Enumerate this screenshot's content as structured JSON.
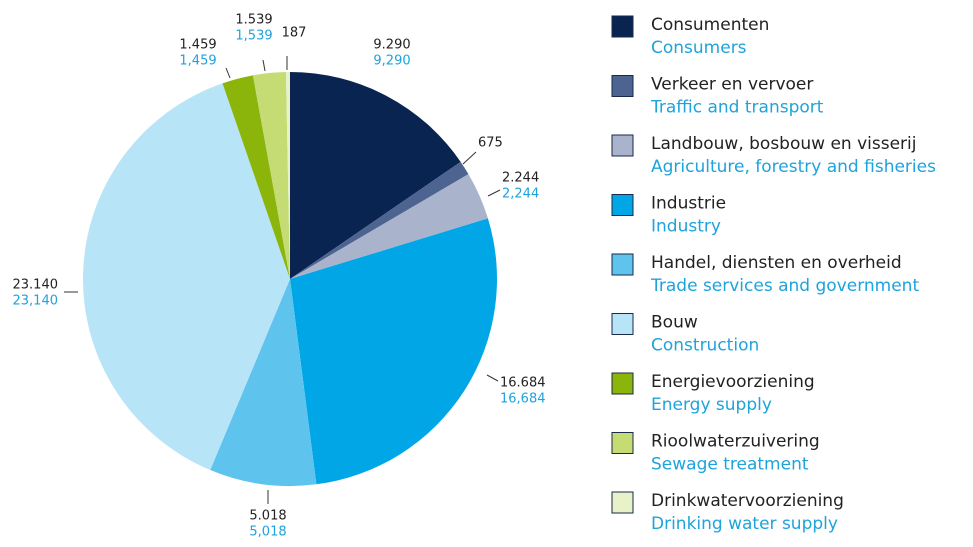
{
  "chart_data": {
    "type": "pie",
    "categories": [
      "Consumenten",
      "Verkeer en vervoer",
      "Landbouw, bosbouw en visserij",
      "Industrie",
      "Handel, diensten en overheid",
      "Bouw",
      "Energievoorziening",
      "Rioolwaterzuivering",
      "Drinkwatervoorziening"
    ],
    "categories_en": [
      "Consumers",
      "Traffic and transport",
      "Agriculture, forestry and fisheries",
      "Industry",
      "Trade services and government",
      "Construction",
      "Energy supply",
      "Sewage treatment",
      "Drinking water supply"
    ],
    "values": [
      9290,
      675,
      2244,
      16684,
      5018,
      23140,
      1459,
      1539,
      187
    ],
    "value_labels": [
      "9.290",
      "675",
      "2.244",
      "16.684",
      "5.018",
      "23.140",
      "1.459",
      "1.539",
      "187"
    ],
    "value_labels_en": [
      "9,290",
      null,
      "2,244",
      "16,684",
      "5,018",
      "23,140",
      "1,459",
      "1,539",
      null
    ],
    "colors": [
      "#0a2451",
      "#4e6490",
      "#a9b4cc",
      "#00a6e6",
      "#5ec4ee",
      "#b8e4f7",
      "#8cb50b",
      "#c4dc73",
      "#e7f2c9"
    ]
  }
}
